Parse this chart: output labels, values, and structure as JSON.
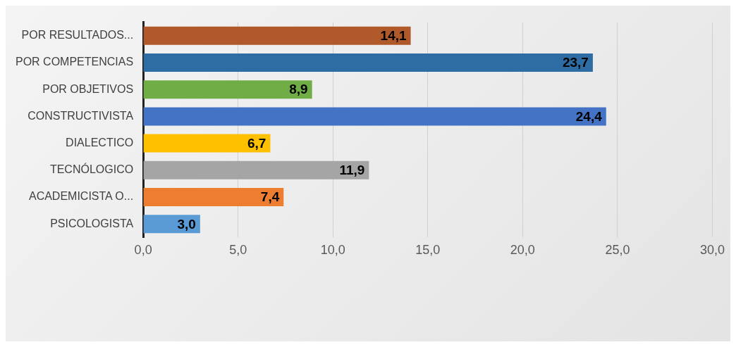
{
  "chart_data": {
    "type": "bar",
    "orientation": "horizontal",
    "categories": [
      "POR RESULTADOS...",
      "POR COMPETENCIAS",
      "POR OBJETIVOS",
      "CONSTRUCTIVISTA",
      "DIALECTICO",
      "TECNÓLOGICO",
      "ACADEMICISTA O...",
      "PSICOLOGISTA"
    ],
    "values": [
      14.1,
      23.7,
      8.9,
      24.4,
      6.7,
      11.9,
      7.4,
      3.0
    ],
    "colors": [
      "#b0592a",
      "#2e6da4",
      "#70ad47",
      "#4472c4",
      "#ffc000",
      "#a5a5a5",
      "#ed7d31",
      "#5b9bd5"
    ],
    "value_labels": [
      "14,1",
      "23,7",
      "8,9",
      "24,4",
      "6,7",
      "11,9",
      "7,4",
      "3,0"
    ],
    "xlim": [
      0,
      30
    ],
    "xticks": [
      {
        "value": 0,
        "label": "0,0"
      },
      {
        "value": 5,
        "label": "5,0"
      },
      {
        "value": 10,
        "label": "10,0"
      },
      {
        "value": 15,
        "label": "15,0"
      },
      {
        "value": 20,
        "label": "20,0"
      },
      {
        "value": 25,
        "label": "25,0"
      },
      {
        "value": 30,
        "label": "30,0"
      }
    ],
    "grid": "x",
    "legend": false
  }
}
